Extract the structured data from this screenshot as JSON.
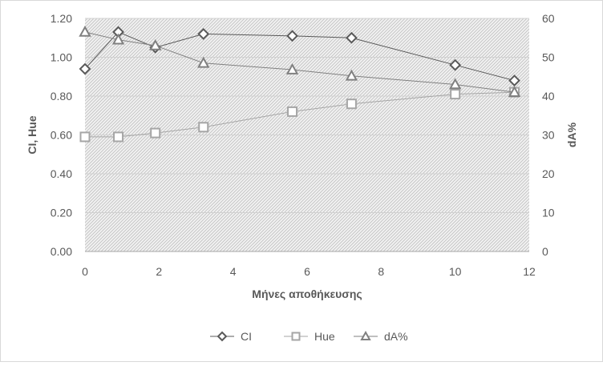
{
  "chart_data": {
    "type": "line",
    "xlabel": "Μήνες αποθήκευσης",
    "ylabel_left": "CI, Hue",
    "ylabel_right": "dA%",
    "xlim": [
      0,
      12
    ],
    "ylim_left": [
      0,
      1.2
    ],
    "ylim_right": [
      0,
      60
    ],
    "x_ticks": [
      "0",
      "2",
      "4",
      "6",
      "8",
      "10",
      "12"
    ],
    "y_left_ticks": [
      "0.00",
      "0.20",
      "0.40",
      "0.60",
      "0.80",
      "1.00",
      "1.20"
    ],
    "y_right_ticks": [
      "0",
      "10",
      "20",
      "30",
      "40",
      "50",
      "60"
    ],
    "legend_position": "bottom",
    "series": [
      {
        "name": "CI",
        "axis": "left",
        "marker": "diamond",
        "color": "#595959",
        "x": [
          0,
          0.9,
          1.9,
          3.2,
          5.6,
          7.2,
          10,
          11.6
        ],
        "values": [
          0.94,
          1.13,
          1.05,
          1.12,
          1.11,
          1.1,
          0.96,
          0.88
        ]
      },
      {
        "name": "Hue",
        "axis": "left",
        "marker": "square",
        "color": "#a6a6a6",
        "x": [
          0,
          0.9,
          1.9,
          3.2,
          5.6,
          7.2,
          10,
          11.6
        ],
        "values": [
          0.59,
          0.59,
          0.61,
          0.64,
          0.72,
          0.76,
          0.81,
          0.82
        ]
      },
      {
        "name": "dA%",
        "axis": "right",
        "marker": "triangle",
        "color": "#808080",
        "x": [
          0,
          0.9,
          1.9,
          3.2,
          5.6,
          7.2,
          10,
          11.6
        ],
        "values": [
          56.5,
          54.5,
          53,
          48.5,
          46.8,
          45.2,
          43,
          41
        ]
      }
    ]
  }
}
